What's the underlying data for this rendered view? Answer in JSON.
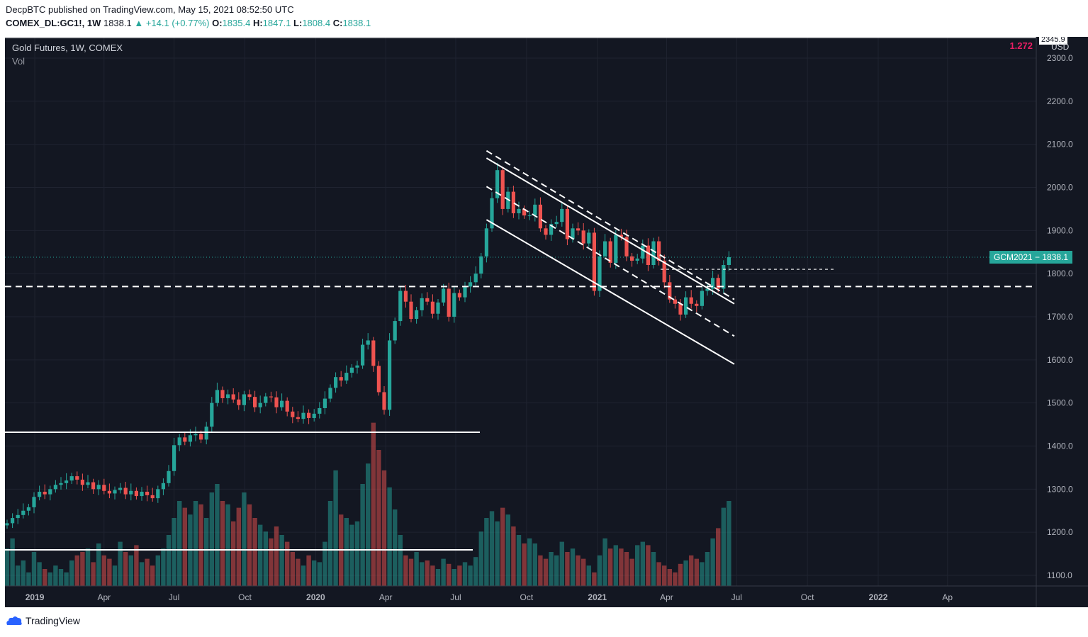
{
  "header": {
    "line1": "DecpBTC published on TradingView.com, May 15, 2021 08:52:50 UTC",
    "symbol_interval": "COMEX_DL:GC1!, 1W",
    "last": "1838.1",
    "change": "▲ +14.1 (+0.77%)",
    "o_label": "O:",
    "o": "1835.4",
    "h_label": "H:",
    "h": "1847.1",
    "l_label": "L:",
    "l": "1808.4",
    "c_label": "C:",
    "c": "1838.1"
  },
  "legend": {
    "title": "Gold Futures, 1W, COMEX",
    "volume": "Vol"
  },
  "fib_label": "1.272",
  "price_tag": "GCM2021 − 1838.1",
  "top_tag": "2345.9",
  "currency": "USD",
  "footer": {
    "brand": "TradingView"
  },
  "colors": {
    "up": "#26a69a",
    "down": "#ef5350",
    "background": "#131722",
    "fib": "#e91e63",
    "drawing": "#ffffff"
  },
  "chart_data": {
    "type": "candlestick",
    "title": "Gold Futures, 1W, COMEX",
    "interval": "1W",
    "start_date": "2018-11-26",
    "ylim": [
      1080,
      2350
    ],
    "y_ticks": [
      "2300.0",
      "2200.0",
      "2100.0",
      "2000.0",
      "1900.0",
      "1800.0",
      "1700.0",
      "1600.0",
      "1500.0",
      "1400.0",
      "1300.0",
      "1200.0",
      "1100.0"
    ],
    "x_ticks": [
      "2019",
      "Apr",
      "Jul",
      "Oct",
      "2020",
      "Apr",
      "Jul",
      "Oct",
      "2021",
      "Apr",
      "Jul",
      "Oct",
      "2022",
      "Ap"
    ],
    "last_price": 1838.1,
    "close": [
      1221,
      1233,
      1240,
      1250,
      1258,
      1282,
      1294,
      1288,
      1300,
      1310,
      1314,
      1320,
      1330,
      1322,
      1310,
      1316,
      1300,
      1310,
      1296,
      1290,
      1298,
      1303,
      1288,
      1296,
      1284,
      1294,
      1286,
      1279,
      1300,
      1314,
      1342,
      1402,
      1420,
      1410,
      1425,
      1428,
      1415,
      1445,
      1500,
      1530,
      1511,
      1520,
      1508,
      1495,
      1520,
      1514,
      1490,
      1500,
      1515,
      1513,
      1490,
      1505,
      1480,
      1467,
      1463,
      1477,
      1465,
      1475,
      1488,
      1510,
      1535,
      1560,
      1552,
      1570,
      1582,
      1587,
      1635,
      1645,
      1586,
      1525,
      1484,
      1645,
      1690,
      1760,
      1735,
      1695,
      1715,
      1743,
      1735,
      1707,
      1733,
      1765,
      1700,
      1755,
      1745,
      1770,
      1780,
      1800,
      1840,
      1905,
      1975,
      2040,
      1950,
      1990,
      1940,
      1950,
      1935,
      1935,
      1960,
      1905,
      1890,
      1915,
      1920,
      1950,
      1880,
      1905,
      1900,
      1870,
      1895,
      1760,
      1840,
      1875,
      1825,
      1890,
      1885,
      1840,
      1830,
      1835,
      1865,
      1820,
      1875,
      1830,
      1780,
      1740,
      1730,
      1705,
      1745,
      1730,
      1725,
      1760,
      1765,
      1790,
      1765,
      1820,
      1838.1
    ],
    "volume": [
      122,
      128,
      112,
      115,
      108,
      120,
      114,
      110,
      108,
      112,
      110,
      108,
      115,
      118,
      120,
      122,
      114,
      125,
      118,
      116,
      112,
      126,
      120,
      118,
      124,
      114,
      116,
      112,
      118,
      122,
      130,
      140,
      150,
      146,
      142,
      150,
      148,
      140,
      155,
      160,
      150,
      148,
      138,
      146,
      155,
      148,
      140,
      136,
      132,
      128,
      135,
      130,
      126,
      120,
      116,
      112,
      118,
      115,
      114,
      126,
      150,
      168,
      142,
      140,
      136,
      138,
      160,
      172,
      196,
      180,
      168,
      158,
      145,
      130,
      118,
      116,
      120,
      114,
      115,
      112,
      110,
      116,
      113,
      110,
      112,
      114,
      112,
      117,
      132,
      140,
      144,
      138,
      146,
      142,
      135,
      130,
      125,
      128,
      125,
      118,
      116,
      120,
      118,
      126,
      120,
      122,
      118,
      116,
      112,
      108,
      118,
      128,
      122,
      124,
      122,
      120,
      116,
      124,
      126,
      124,
      120,
      114,
      112,
      110,
      108,
      113,
      115,
      118,
      116,
      114,
      120,
      128,
      134,
      146,
      150
    ],
    "annotations": {
      "horizontal_levels": [
        1770,
        1432,
        1810
      ],
      "channel_top": {
        "from": [
          "2020-08-10",
          2085
        ],
        "to": [
          "2021-06-28",
          1740
        ]
      },
      "channel_mid": {
        "from": [
          "2020-08-10",
          2002
        ],
        "to": [
          "2021-06-28",
          1655
        ]
      },
      "channel_bottom": {
        "from": [
          "2020-08-10",
          1925
        ],
        "to": [
          "2021-06-28",
          1590
        ]
      },
      "channel_inner": {
        "from": [
          "2020-08-10",
          2068
        ],
        "to": [
          "2021-06-28",
          1730
        ]
      }
    }
  }
}
